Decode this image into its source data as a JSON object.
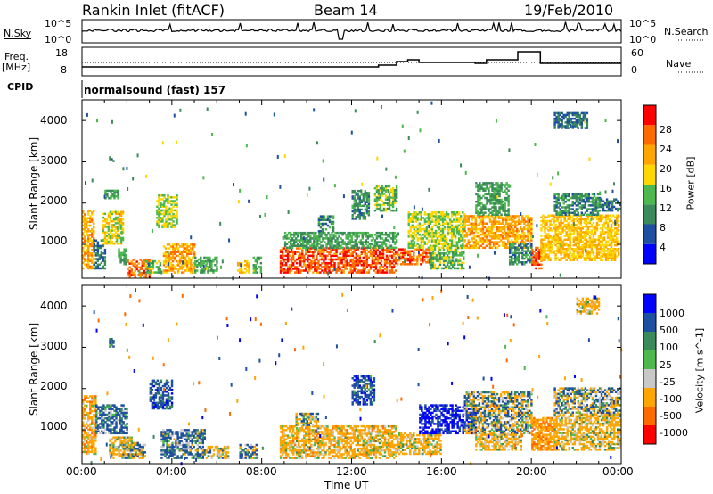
{
  "header": {
    "station": "Rankin Inlet (fitACF)",
    "beam": "Beam 14",
    "date": "19/Feb/2010"
  },
  "nsky_panel": {
    "left_label": "N.Sky",
    "right_label": "N.Search",
    "left_ticks": [
      "10^5",
      "10^0"
    ],
    "right_ticks": [
      "10^5",
      "10^0"
    ]
  },
  "freq_panel": {
    "left_label_1": "Freq.",
    "left_label_2": "[MHz]",
    "right_label": "Nave",
    "left_ticks": [
      "18",
      "8"
    ],
    "right_ticks": [
      "60",
      "0"
    ]
  },
  "cpid_panel": {
    "label": "CPID",
    "mode_text": "normalsound (fast) 157"
  },
  "colors": {
    "power": [
      "#0000ff",
      "#1e4fa0",
      "#3a8a5a",
      "#4db84d",
      "#ffd700",
      "#ffa500",
      "#ff6a00",
      "#ff0000"
    ],
    "velocity": [
      "#ff0000",
      "#ff6a00",
      "#ffa500",
      "#c8c8c8",
      "#4db84d",
      "#3a8a5a",
      "#1e4fa0",
      "#0000ff"
    ],
    "ground_scatter": "#bebebe"
  },
  "chart_data": [
    {
      "type": "heatmap",
      "name": "power",
      "ylabel": "Slant Range [km]",
      "y_ticks": [
        "1000",
        "2000",
        "3000",
        "4000"
      ],
      "ylim": [
        180,
        4500
      ],
      "xlim_hours": [
        0,
        24
      ],
      "colorbar": {
        "label": "Power [dB]",
        "ticks": [
          "28",
          "24",
          "20",
          "16",
          "12",
          "8",
          "4"
        ]
      },
      "patches": [
        {
          "t": [
            0.0,
            0.5
          ],
          "r": [
            400,
            1800
          ],
          "v": 22
        },
        {
          "t": [
            0.5,
            1.0
          ],
          "r": [
            400,
            1100
          ],
          "v": 8
        },
        {
          "t": [
            0.9,
            1.8
          ],
          "r": [
            1000,
            1800
          ],
          "v": 18
        },
        {
          "t": [
            1.0,
            1.6
          ],
          "r": [
            2100,
            2300
          ],
          "v": 12
        },
        {
          "t": [
            1.2,
            1.4
          ],
          "r": [
            3000,
            3200
          ],
          "v": 8
        },
        {
          "t": [
            1.6,
            2.0
          ],
          "r": [
            500,
            900
          ],
          "v": 12
        },
        {
          "t": [
            2.0,
            3.0
          ],
          "r": [
            200,
            650
          ],
          "v": 26
        },
        {
          "t": [
            2.8,
            3.5
          ],
          "r": [
            300,
            600
          ],
          "v": 14
        },
        {
          "t": [
            3.3,
            4.2
          ],
          "r": [
            1400,
            2200
          ],
          "v": 16
        },
        {
          "t": [
            3.6,
            5.0
          ],
          "r": [
            300,
            1000
          ],
          "v": 22
        },
        {
          "t": [
            5.0,
            6.0
          ],
          "r": [
            300,
            700
          ],
          "v": 12
        },
        {
          "t": [
            6.9,
            7.4
          ],
          "r": [
            300,
            600
          ],
          "v": 20
        },
        {
          "t": [
            7.6,
            8.0
          ],
          "r": [
            300,
            700
          ],
          "v": 14
        },
        {
          "t": [
            8.8,
            14.0
          ],
          "r": [
            300,
            900
          ],
          "v": 27
        },
        {
          "t": [
            9.0,
            14.0
          ],
          "r": [
            900,
            1300
          ],
          "v": 12
        },
        {
          "t": [
            10.5,
            11.2
          ],
          "r": [
            1300,
            1700
          ],
          "v": 10
        },
        {
          "t": [
            12.0,
            12.8
          ],
          "r": [
            1600,
            2300
          ],
          "v": 10
        },
        {
          "t": [
            13.0,
            14.0
          ],
          "r": [
            1800,
            2400
          ],
          "v": 14
        },
        {
          "t": [
            14.0,
            15.5
          ],
          "r": [
            500,
            900
          ],
          "v": 26
        },
        {
          "t": [
            14.5,
            17.0
          ],
          "r": [
            900,
            1800
          ],
          "v": 16
        },
        {
          "t": [
            15.5,
            17.0
          ],
          "r": [
            400,
            900
          ],
          "v": 14
        },
        {
          "t": [
            17.0,
            20.0
          ],
          "r": [
            900,
            1700
          ],
          "v": 22
        },
        {
          "t": [
            17.5,
            19.0
          ],
          "r": [
            1700,
            2500
          ],
          "v": 12
        },
        {
          "t": [
            19.0,
            20.0
          ],
          "r": [
            500,
            1000
          ],
          "v": 10
        },
        {
          "t": [
            20.0,
            20.4
          ],
          "r": [
            400,
            900
          ],
          "v": 28
        },
        {
          "t": [
            20.4,
            23.9
          ],
          "r": [
            600,
            1700
          ],
          "v": 20
        },
        {
          "t": [
            21.0,
            23.0
          ],
          "r": [
            1700,
            2200
          ],
          "v": 10
        },
        {
          "t": [
            21.0,
            22.5
          ],
          "r": [
            3800,
            4200
          ],
          "v": 8
        },
        {
          "t": [
            23.0,
            23.9
          ],
          "r": [
            1800,
            2100
          ],
          "v": 8
        }
      ]
    },
    {
      "type": "heatmap",
      "name": "velocity",
      "ylabel": "Slant Range [km]",
      "y_ticks": [
        "1000",
        "2000",
        "3000",
        "4000"
      ],
      "ylim": [
        180,
        4500
      ],
      "xlabel": "Time UT",
      "x_ticks": [
        "00:00",
        "04:00",
        "08:00",
        "12:00",
        "16:00",
        "20:00",
        "00:00"
      ],
      "xlim_hours": [
        0,
        24
      ],
      "colorbar": {
        "label": "Velocity [m s^-1]",
        "ticks": [
          "1000",
          "500",
          "100",
          "25",
          "-25",
          "-100",
          "-500",
          "-1000"
        ]
      },
      "patches": [
        {
          "t": [
            0.0,
            0.6
          ],
          "r": [
            400,
            1800
          ],
          "v": -300
        },
        {
          "t": [
            0.6,
            2.0
          ],
          "r": [
            900,
            1600
          ],
          "v": 200
        },
        {
          "t": [
            1.2,
            2.2
          ],
          "r": [
            300,
            800
          ],
          "v": -200
        },
        {
          "t": [
            1.8,
            2.8
          ],
          "r": [
            300,
            700
          ],
          "v": 0
        },
        {
          "t": [
            1.2,
            1.4
          ],
          "r": [
            3000,
            3200
          ],
          "v": 200
        },
        {
          "t": [
            3.0,
            4.0
          ],
          "r": [
            1500,
            2200
          ],
          "v": 300
        },
        {
          "t": [
            3.5,
            5.5
          ],
          "r": [
            300,
            1000
          ],
          "v": 150
        },
        {
          "t": [
            5.5,
            6.5
          ],
          "r": [
            300,
            600
          ],
          "v": -150
        },
        {
          "t": [
            7.0,
            7.8
          ],
          "r": [
            300,
            650
          ],
          "v": 80
        },
        {
          "t": [
            8.8,
            14.0
          ],
          "r": [
            300,
            1100
          ],
          "v": -250
        },
        {
          "t": [
            9.5,
            10.5
          ],
          "r": [
            1100,
            1400
          ],
          "v": -60
        },
        {
          "t": [
            12.0,
            13.0
          ],
          "r": [
            1600,
            2300
          ],
          "v": 300
        },
        {
          "t": [
            14.0,
            16.0
          ],
          "r": [
            400,
            900
          ],
          "v": -200
        },
        {
          "t": [
            15.0,
            17.5
          ],
          "r": [
            900,
            1600
          ],
          "v": 600
        },
        {
          "t": [
            17.0,
            20.0
          ],
          "r": [
            900,
            1900
          ],
          "v": 0
        },
        {
          "t": [
            17.5,
            19.5
          ],
          "r": [
            500,
            900
          ],
          "v": -200
        },
        {
          "t": [
            20.0,
            21.0
          ],
          "r": [
            500,
            1300
          ],
          "v": -400
        },
        {
          "t": [
            21.0,
            23.9
          ],
          "r": [
            500,
            1400
          ],
          "v": -200
        },
        {
          "t": [
            21.0,
            23.9
          ],
          "r": [
            1400,
            2000
          ],
          "v": 0
        },
        {
          "t": [
            22.0,
            23.0
          ],
          "r": [
            3800,
            4200
          ],
          "v": -200
        }
      ]
    }
  ]
}
